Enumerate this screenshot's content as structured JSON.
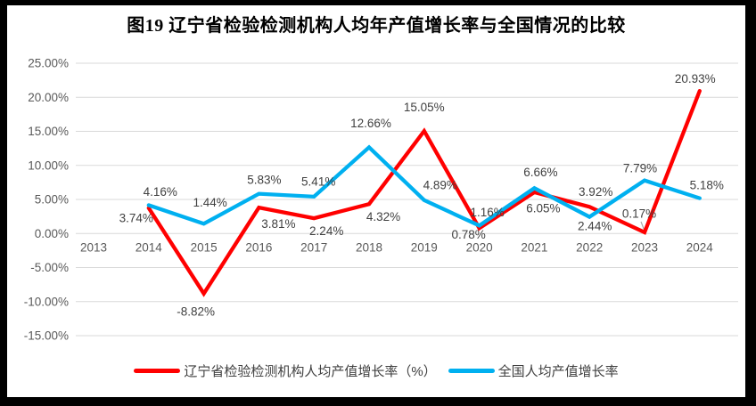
{
  "title": "图19 辽宁省检验检测机构人均年产值增长率与全国情况的比较",
  "colors": {
    "liaoning_line": "#FF0000",
    "national_line": "#00B0F0",
    "grid": "#D9D9D9",
    "axis_text": "#595959",
    "data_label_text": "#404040",
    "leader_line": "#A6A6A6",
    "frame_border": "#000000"
  },
  "chart_data": {
    "type": "line",
    "title": "图19 辽宁省检验检测机构人均年产值增长率与全国情况的比较",
    "x": [
      "2013",
      "2014",
      "2015",
      "2016",
      "2017",
      "2018",
      "2019",
      "2020",
      "2021",
      "2022",
      "2023",
      "2024"
    ],
    "series": [
      {
        "name": "辽宁省检验检测机构人均产值增长率（%）",
        "color": "#FF0000",
        "values": [
          null,
          3.74,
          -8.82,
          3.81,
          2.24,
          4.32,
          15.05,
          0.78,
          6.05,
          3.92,
          0.17,
          20.93
        ],
        "label_offsets": [
          [
            0,
            0
          ],
          [
            -14,
            11
          ],
          [
            -9,
            20
          ],
          [
            22,
            18
          ],
          [
            14,
            14
          ],
          [
            16,
            14
          ],
          [
            0,
            -27
          ],
          [
            -12,
            7
          ],
          [
            10,
            18
          ],
          [
            7,
            -17
          ],
          [
            -6,
            -21
          ],
          [
            -5,
            -14
          ]
        ]
      },
      {
        "name": "全国人均产值增长率",
        "color": "#00B0F0",
        "values": [
          null,
          4.16,
          1.44,
          5.83,
          5.41,
          12.66,
          4.89,
          1.16,
          6.66,
          2.44,
          7.79,
          5.18
        ],
        "label_offsets": [
          [
            0,
            0
          ],
          [
            13,
            -15
          ],
          [
            7,
            -24
          ],
          [
            6,
            -16
          ],
          [
            5,
            -17
          ],
          [
            2,
            -27
          ],
          [
            18,
            -17
          ],
          [
            9,
            -15
          ],
          [
            7,
            -18
          ],
          [
            6,
            10
          ],
          [
            -5,
            -14
          ],
          [
            8,
            -15
          ]
        ]
      }
    ],
    "ylim": [
      -15,
      25
    ],
    "ytick_step": 5,
    "ytick_labels": [
      "25.00%",
      "20.00%",
      "15.00%",
      "10.00%",
      "5.00%",
      "0.00%",
      "-5.00%",
      "-10.00%",
      "-15.00%"
    ],
    "xlabel": "",
    "ylabel": "",
    "grid": true,
    "data_labels": true,
    "label_format": "0.00%",
    "legend_position": "bottom",
    "leader_lines": [
      {
        "series": 0,
        "x_index": 10
      }
    ]
  },
  "legend": {
    "items": [
      {
        "label": "辽宁省检验检测机构人均产值增长率（%）",
        "color": "#FF0000"
      },
      {
        "label": "全国人均产值增长率",
        "color": "#00B0F0"
      }
    ]
  }
}
